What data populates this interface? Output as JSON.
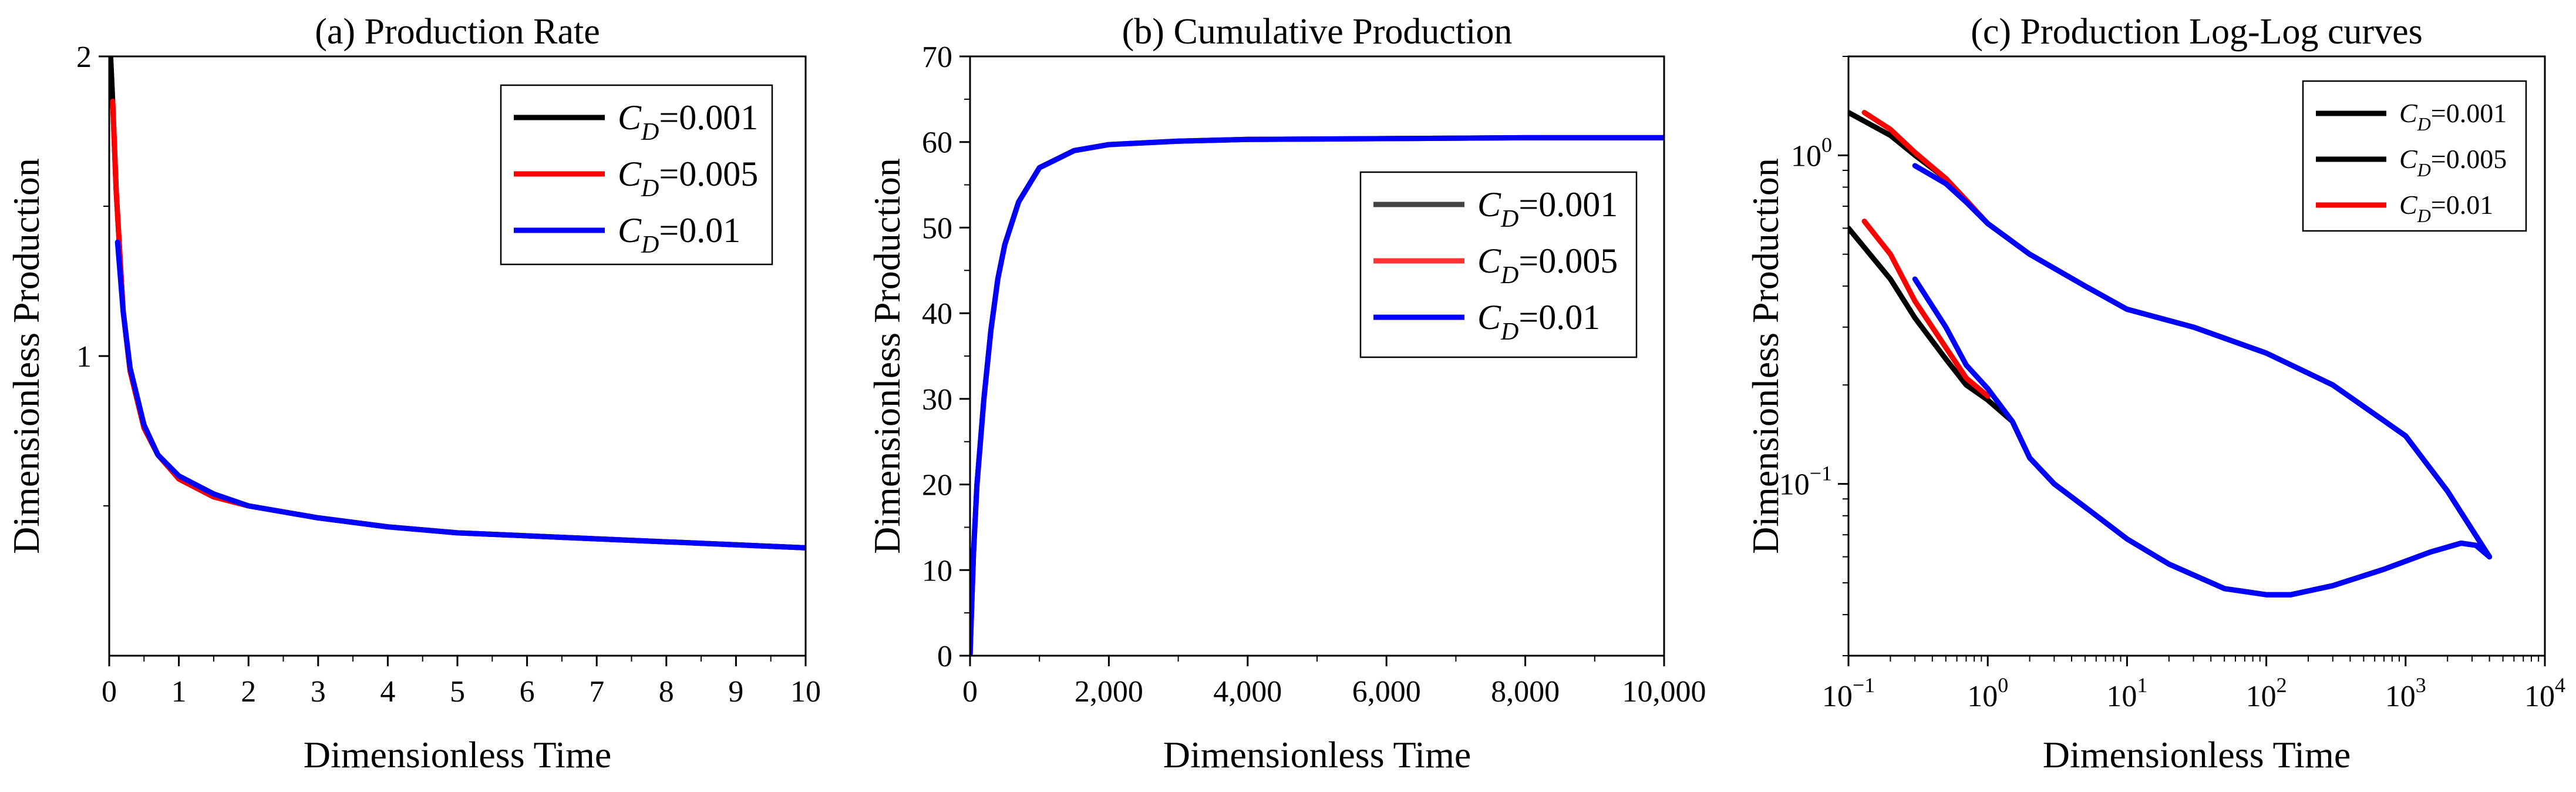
{
  "chart_data": [
    {
      "type": "line",
      "title": "(a) Production Rate",
      "xlabel": "Dimensionless Time",
      "ylabel": "Dimensionless Production",
      "xlim": [
        0,
        10
      ],
      "ylim": [
        0,
        2
      ],
      "xticks": [
        0,
        1,
        2,
        3,
        4,
        5,
        6,
        7,
        8,
        9,
        10
      ],
      "xtick_labels": [
        "0",
        "1",
        "2",
        "3",
        "4",
        "5",
        "6",
        "7",
        "8",
        "9",
        "10"
      ],
      "yticks": [
        1,
        2
      ],
      "ytick_labels": [
        "1",
        "2"
      ],
      "grid": false,
      "legend_position": "top-right",
      "series": [
        {
          "name": "CD=0.001",
          "legend_main": "C",
          "legend_sub": "D",
          "legend_value": "=0.001",
          "color": "#000000",
          "x": [
            0.02,
            0.05,
            0.1,
            0.2,
            0.3,
            0.5,
            0.7,
            1,
            1.5,
            2,
            3,
            4,
            5,
            6,
            7,
            8,
            9,
            10
          ],
          "y": [
            2.0,
            1.85,
            1.55,
            1.15,
            0.95,
            0.76,
            0.67,
            0.59,
            0.53,
            0.5,
            0.46,
            0.43,
            0.41,
            0.4,
            0.39,
            0.38,
            0.37,
            0.36
          ]
        },
        {
          "name": "CD=0.005",
          "legend_main": "C",
          "legend_sub": "D",
          "legend_value": "=0.005",
          "color": "#ff0000",
          "x": [
            0.05,
            0.1,
            0.2,
            0.3,
            0.5,
            0.7,
            1,
            1.5,
            2,
            3,
            4,
            5,
            6,
            7,
            8,
            9,
            10
          ],
          "y": [
            1.85,
            1.55,
            1.15,
            0.95,
            0.76,
            0.67,
            0.59,
            0.53,
            0.5,
            0.46,
            0.43,
            0.41,
            0.4,
            0.39,
            0.38,
            0.37,
            0.36
          ]
        },
        {
          "name": "CD=0.01",
          "legend_main": "C",
          "legend_sub": "D",
          "legend_value": "=0.01",
          "color": "#0000ff",
          "x": [
            0.12,
            0.2,
            0.3,
            0.5,
            0.7,
            1,
            1.5,
            2,
            3,
            4,
            5,
            6,
            7,
            8,
            9,
            10
          ],
          "y": [
            1.38,
            1.15,
            0.96,
            0.77,
            0.67,
            0.6,
            0.54,
            0.5,
            0.46,
            0.43,
            0.41,
            0.4,
            0.39,
            0.38,
            0.37,
            0.36
          ]
        }
      ]
    },
    {
      "type": "line",
      "title": "(b) Cumulative Production",
      "xlabel": "Dimensionless Time",
      "ylabel": "Dimensionless Production",
      "xlim": [
        0,
        10000
      ],
      "ylim": [
        0,
        70
      ],
      "xticks": [
        0,
        2000,
        4000,
        6000,
        8000,
        10000
      ],
      "xtick_labels": [
        "0",
        "2,000",
        "4,000",
        "6,000",
        "8,000",
        "10,000"
      ],
      "yticks": [
        0,
        10,
        20,
        30,
        40,
        50,
        60,
        70
      ],
      "ytick_labels": [
        "0",
        "10",
        "20",
        "30",
        "40",
        "50",
        "60",
        "70"
      ],
      "grid": false,
      "legend_position": "right",
      "series": [
        {
          "name": "CD=0.001",
          "legend_main": "C",
          "legend_sub": "D",
          "legend_value": "=0.001",
          "color": "#444444",
          "x": [
            0,
            20,
            50,
            100,
            200,
            300,
            400,
            500,
            700,
            1000,
            1500,
            2000,
            3000,
            4000,
            6000,
            8000,
            10000
          ],
          "y": [
            0,
            5,
            12,
            20,
            30,
            38,
            44,
            48,
            53,
            57,
            59,
            59.7,
            60.1,
            60.3,
            60.4,
            60.5,
            60.5
          ]
        },
        {
          "name": "CD=0.005",
          "legend_main": "C",
          "legend_sub": "D",
          "legend_value": "=0.005",
          "color": "#ff3333",
          "x": [
            0,
            20,
            50,
            100,
            200,
            300,
            400,
            500,
            700,
            1000,
            1500,
            2000,
            3000,
            4000,
            6000,
            8000,
            10000
          ],
          "y": [
            0,
            5,
            12,
            20,
            30,
            38,
            44,
            48,
            53,
            57,
            59,
            59.7,
            60.1,
            60.3,
            60.4,
            60.5,
            60.5
          ]
        },
        {
          "name": "CD=0.01",
          "legend_main": "C",
          "legend_sub": "D",
          "legend_value": "=0.01",
          "color": "#0000ff",
          "x": [
            0,
            20,
            50,
            100,
            200,
            300,
            400,
            500,
            700,
            1000,
            1500,
            2000,
            3000,
            4000,
            6000,
            8000,
            10000
          ],
          "y": [
            0,
            5,
            12,
            20,
            30,
            38,
            44,
            48,
            53,
            57,
            59,
            59.7,
            60.1,
            60.3,
            60.4,
            60.5,
            60.5
          ]
        }
      ]
    },
    {
      "type": "line",
      "title": "(c) Production Log-Log curves",
      "xlabel": "Dimensionless Time",
      "ylabel": "Dimensionless Production",
      "xscale": "log",
      "yscale": "log",
      "xlim": [
        0.1,
        10000
      ],
      "ylim": [
        0.03,
        2
      ],
      "xticks": [
        0.1,
        1,
        10,
        100,
        1000,
        10000
      ],
      "xtick_labels": [
        {
          "base": "10",
          "exp": "−1"
        },
        {
          "base": "10",
          "exp": "0"
        },
        {
          "base": "10",
          "exp": "1"
        },
        {
          "base": "10",
          "exp": "2"
        },
        {
          "base": "10",
          "exp": "3"
        },
        {
          "base": "10",
          "exp": "4"
        }
      ],
      "yticks": [
        0.1,
        1
      ],
      "ytick_labels": [
        {
          "base": "10",
          "exp": "−1"
        },
        {
          "base": "10",
          "exp": "0"
        }
      ],
      "grid": false,
      "legend_position": "top-right",
      "legend": [
        {
          "legend_main": "C",
          "legend_sub": "D",
          "legend_value": "=0.001",
          "color": "#000000"
        },
        {
          "legend_main": "C",
          "legend_sub": "D",
          "legend_value": "=0.005",
          "color": "#000000"
        },
        {
          "legend_main": "C",
          "legend_sub": "D",
          "legend_value": "=0.01",
          "color": "#ff0000"
        }
      ],
      "series": [
        {
          "color": "#000000",
          "x": [
            0.1,
            0.2,
            0.3,
            0.5,
            0.7,
            1,
            2,
            5,
            10,
            30,
            100,
            300,
            1000,
            2000,
            4000
          ],
          "y": [
            1.35,
            1.15,
            1.0,
            0.85,
            0.73,
            0.62,
            0.5,
            0.4,
            0.34,
            0.3,
            0.25,
            0.2,
            0.14,
            0.095,
            0.06
          ]
        },
        {
          "color": "#ff0000",
          "x": [
            0.13,
            0.2,
            0.3,
            0.5,
            0.7,
            1
          ],
          "y": [
            1.35,
            1.2,
            1.02,
            0.85,
            0.73,
            0.62
          ]
        },
        {
          "color": "#0000ff",
          "x": [
            0.3,
            0.5,
            0.7,
            1,
            2,
            5,
            10,
            30,
            100,
            300,
            1000,
            2000,
            4000
          ],
          "y": [
            0.93,
            0.82,
            0.72,
            0.62,
            0.5,
            0.4,
            0.34,
            0.3,
            0.25,
            0.2,
            0.14,
            0.095,
            0.06
          ]
        },
        {
          "color": "#000000",
          "x": [
            0.1,
            0.2,
            0.3,
            0.5,
            0.7,
            1,
            1.5,
            2,
            3,
            5,
            10,
            20,
            50,
            100,
            150,
            300,
            700,
            1500,
            2500,
            3200,
            4000
          ],
          "y": [
            0.6,
            0.42,
            0.32,
            0.24,
            0.2,
            0.18,
            0.155,
            0.12,
            0.1,
            0.085,
            0.068,
            0.057,
            0.048,
            0.046,
            0.046,
            0.049,
            0.055,
            0.062,
            0.066,
            0.065,
            0.06
          ]
        },
        {
          "color": "#ff0000",
          "x": [
            0.13,
            0.2,
            0.3,
            0.5,
            0.7,
            1
          ],
          "y": [
            0.63,
            0.5,
            0.36,
            0.26,
            0.21,
            0.185
          ]
        },
        {
          "color": "#0000ff",
          "x": [
            0.3,
            0.5,
            0.7,
            1,
            1.5,
            2,
            3,
            5,
            10,
            20,
            50,
            100,
            150,
            300,
            700,
            1500,
            2500,
            3200,
            4000
          ],
          "y": [
            0.42,
            0.3,
            0.23,
            0.195,
            0.155,
            0.12,
            0.1,
            0.085,
            0.068,
            0.057,
            0.048,
            0.046,
            0.046,
            0.049,
            0.055,
            0.062,
            0.066,
            0.065,
            0.06
          ]
        }
      ]
    }
  ]
}
